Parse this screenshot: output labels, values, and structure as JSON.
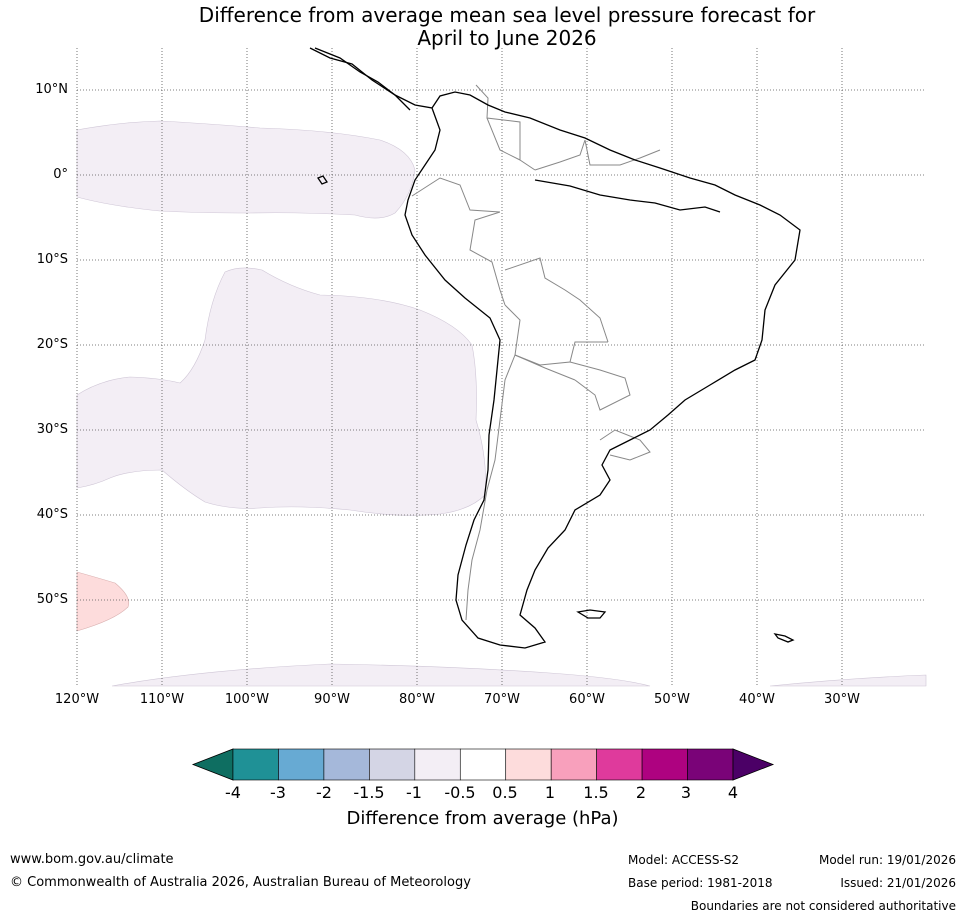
{
  "title_line1": "Difference from average mean sea level pressure forecast for",
  "title_line2": "April to June 2026",
  "lat_labels": [
    "10°N",
    "0°",
    "10°S",
    "20°S",
    "30°S",
    "40°S",
    "50°S"
  ],
  "lon_labels": [
    "120°W",
    "110°W",
    "100°W",
    "90°W",
    "80°W",
    "70°W",
    "60°W",
    "50°W",
    "40°W",
    "30°W"
  ],
  "map_extent": {
    "lon_min": -120,
    "lon_max": -20,
    "lat_min": -60,
    "lat_max": 15
  },
  "colorbar": {
    "ticks": [
      "-4",
      "-3",
      "-2",
      "-1.5",
      "-1",
      "-0.5",
      "0.5",
      "1",
      "1.5",
      "2",
      "3",
      "4"
    ],
    "colors": [
      "#1f9196",
      "#67aad3",
      "#a5b8da",
      "#d4d5e5",
      "#f3eef5",
      "#ffffff",
      "#fddcdc",
      "#f8a0bc",
      "#df3a9c",
      "#ae0280",
      "#7a0378"
    ],
    "under_color": "#0e6e61",
    "over_color": "#4b0066",
    "label": "Difference from average (hPa)"
  },
  "footer": {
    "url": "www.bom.gov.au/climate",
    "copyright": "© Commonwealth of Australia 2026, Australian Bureau of Meteorology",
    "model": "Model: ACCESS-S2",
    "base_period": "Base period: 1981-2018",
    "model_run": "Model run: 19/01/2026",
    "issued": "Issued: 21/01/2026",
    "disclaimer": "Boundaries are not considered authoritative"
  }
}
